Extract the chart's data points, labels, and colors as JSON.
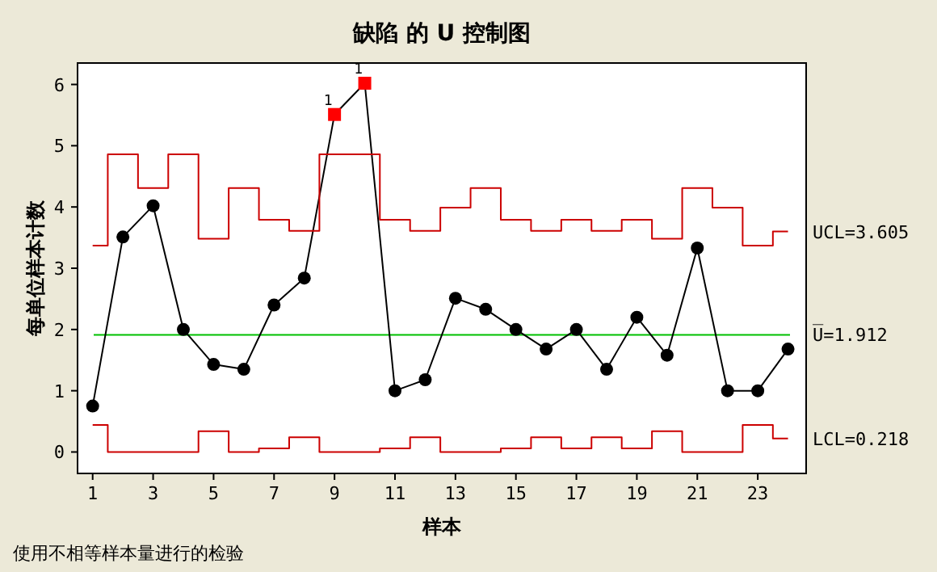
{
  "chart_data": {
    "type": "line",
    "title": "缺陷 的 U 控制图",
    "xlabel": "样本",
    "ylabel": "每单位样本计数",
    "annotations": [
      "使用不相等样本量进行的检验",
      {
        "text": "1",
        "x": 9,
        "y": 5.51
      },
      {
        "text": "1",
        "x": 10,
        "y": 6.02
      }
    ],
    "xlim": [
      0.5,
      24.6
    ],
    "xticks": [
      1,
      3,
      5,
      7,
      9,
      11,
      13,
      15,
      17,
      19,
      21,
      23
    ],
    "ylim": [
      -0.35,
      6.35
    ],
    "yticks": [
      0,
      1,
      2,
      3,
      4,
      5,
      6
    ],
    "ref_lines": [
      {
        "axis": "y",
        "value": 1.912,
        "label": "U̅=1.912",
        "color": "#00c000"
      }
    ],
    "series": [
      {
        "color": "#000000",
        "marker": "none",
        "x": [
          1,
          2,
          3,
          4,
          5,
          6,
          7,
          8,
          9,
          10,
          11,
          12,
          13,
          14,
          15,
          16,
          17,
          18,
          19,
          20,
          21,
          22,
          23,
          24
        ],
        "values": [
          0.75,
          3.51,
          4.02,
          2.0,
          1.43,
          1.35,
          2.4,
          2.84,
          5.51,
          6.02,
          1.0,
          1.18,
          2.51,
          2.33,
          2.0,
          1.68,
          2.0,
          1.35,
          2.2,
          1.58,
          3.33,
          1.0,
          1.0,
          1.68
        ]
      },
      {
        "type": "scatter",
        "color": "#000000",
        "marker": "circle",
        "x": [
          1,
          2,
          3,
          4,
          5,
          6,
          7,
          8,
          11,
          12,
          13,
          14,
          15,
          16,
          17,
          18,
          19,
          20,
          21,
          22,
          23,
          24
        ],
        "values": [
          0.75,
          3.51,
          4.02,
          2.0,
          1.43,
          1.35,
          2.4,
          2.84,
          1.0,
          1.18,
          2.51,
          2.33,
          2.0,
          1.68,
          2.0,
          1.35,
          2.2,
          1.58,
          3.33,
          1.0,
          1.0,
          1.68
        ]
      },
      {
        "type": "scatter",
        "color": "#ff0000",
        "marker": "square",
        "x": [
          9,
          10
        ],
        "values": [
          5.51,
          6.02
        ]
      },
      {
        "type": "step",
        "name": "UCL=3.605",
        "color": "#cc0000",
        "x": [
          1,
          2,
          3,
          4,
          5,
          6,
          7,
          8,
          9,
          10,
          11,
          12,
          13,
          14,
          15,
          16,
          17,
          18,
          19,
          20,
          21,
          22,
          23,
          24
        ],
        "values": [
          3.37,
          4.86,
          4.31,
          4.86,
          3.48,
          4.31,
          3.79,
          3.61,
          4.86,
          4.86,
          3.79,
          3.61,
          3.99,
          4.31,
          3.79,
          3.61,
          3.79,
          3.61,
          3.79,
          3.48,
          4.31,
          3.99,
          3.37,
          3.6
        ]
      },
      {
        "type": "step",
        "name": "LCL=0.218",
        "color": "#cc0000",
        "x": [
          1,
          2,
          3,
          4,
          5,
          6,
          7,
          8,
          9,
          10,
          11,
          12,
          13,
          14,
          15,
          16,
          17,
          18,
          19,
          20,
          21,
          22,
          23,
          24
        ],
        "values": [
          0.44,
          0,
          0,
          0,
          0.34,
          0,
          0.06,
          0.24,
          0,
          0,
          0.06,
          0.24,
          0,
          0,
          0.06,
          0.24,
          0.06,
          0.24,
          0.06,
          0.34,
          0,
          0,
          0.44,
          0.22
        ]
      }
    ],
    "grid": false,
    "legend": false
  }
}
